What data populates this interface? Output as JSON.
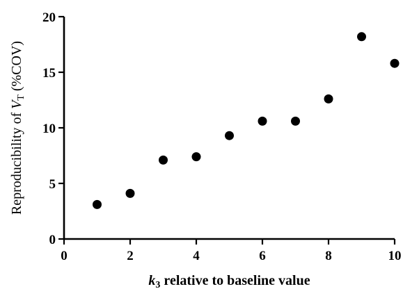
{
  "chart_data": {
    "type": "scatter",
    "title": "",
    "xlabel": {
      "variable": "k",
      "subscript": "3",
      "rest": " relative to baseline value"
    },
    "ylabel": {
      "prefix": "Reproducibility of ",
      "variable": "V",
      "subscript": "T",
      "suffix": " (%COV)"
    },
    "xlim": [
      0,
      10
    ],
    "ylim": [
      0,
      20
    ],
    "xticks": [
      0,
      2,
      4,
      6,
      8,
      10
    ],
    "yticks": [
      0,
      5,
      10,
      15,
      20
    ],
    "grid": false,
    "legend": "none",
    "marker_color": "#000000",
    "points": [
      {
        "x": 1,
        "y": 3.1
      },
      {
        "x": 2,
        "y": 4.1
      },
      {
        "x": 3,
        "y": 7.1
      },
      {
        "x": 4,
        "y": 7.4
      },
      {
        "x": 5,
        "y": 9.3
      },
      {
        "x": 6,
        "y": 10.6
      },
      {
        "x": 7,
        "y": 10.6
      },
      {
        "x": 8,
        "y": 12.6
      },
      {
        "x": 9,
        "y": 18.2
      },
      {
        "x": 10,
        "y": 15.8
      }
    ]
  }
}
